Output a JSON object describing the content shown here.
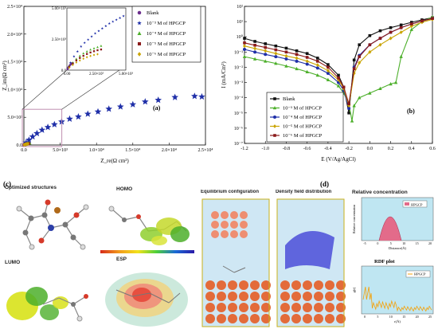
{
  "panel_labels": {
    "a": "(a)",
    "b": "(b)",
    "c": "(c)",
    "d": "(d)"
  },
  "chart_data": [
    {
      "type": "scatter",
      "xlabel": "Z_re(Ω cm²)",
      "ylabel": "Z_im(Ω cm²)",
      "xlim": [
        0,
        25000
      ],
      "ylim": [
        0,
        25000
      ],
      "x_ticks": [
        "0.0",
        "5.0×10³",
        "1.0×10⁴",
        "1.5×10⁴",
        "2.0×10⁴",
        "2.5×10⁴"
      ],
      "y_ticks": [
        "0.0",
        "5.0×10³",
        "1.0×10⁴",
        "1.5×10⁴",
        "2.0×10⁴",
        "2.5×10⁴"
      ],
      "legend_position": "top-right",
      "series": [
        {
          "name": "Blank",
          "color": "#6b2d8c",
          "marker": "circle",
          "x": [
            60,
            120,
            200,
            280,
            350,
            420,
            480
          ],
          "y": [
            30,
            60,
            90,
            120,
            140,
            155,
            165
          ]
        },
        {
          "name": "10⁻³ M of HPGCP",
          "color": "#1f2fa8",
          "marker": "star",
          "x": [
            300,
            700,
            1200,
            1800,
            2500,
            3300,
            4200,
            5200,
            6300,
            7500,
            8800,
            10200,
            11700,
            13300,
            15000,
            16700,
            18500,
            20800,
            23500,
            24500
          ],
          "y": [
            400,
            900,
            1500,
            2100,
            2700,
            3200,
            3700,
            4200,
            4700,
            5100,
            5600,
            6000,
            6500,
            6900,
            7300,
            7800,
            8100,
            8600,
            8800,
            8700
          ]
        },
        {
          "name": "10⁻⁴ M of HPGCP",
          "color": "#4caf2a",
          "marker": "triangle",
          "x": [
            60,
            150,
            250,
            350,
            450,
            560,
            680,
            800
          ],
          "y": [
            40,
            100,
            160,
            210,
            250,
            290,
            320,
            340
          ]
        },
        {
          "name": "10⁻⁵ M of HPGCP",
          "color": "#8a1a1a",
          "marker": "square",
          "x": [
            60,
            150,
            250,
            350,
            450,
            560,
            680
          ],
          "y": [
            35,
            90,
            140,
            180,
            215,
            245,
            265
          ]
        },
        {
          "name": "10⁻⁶ M of HPGCP",
          "color": "#c9a400",
          "marker": "diamond",
          "x": [
            60,
            150,
            250,
            350,
            450,
            560
          ],
          "y": [
            30,
            80,
            125,
            160,
            190,
            210
          ]
        }
      ],
      "inset": {
        "xlim": [
          0,
          5000
        ],
        "ylim": [
          0,
          5000
        ],
        "x_ticks": [
          "0.00",
          "2.50×10³",
          "5.00×10³"
        ],
        "y_ticks": [
          "0.0",
          "5.00×10³"
        ],
        "y_mid_label": "2.50×10³",
        "series": [
          {
            "name": "Blank",
            "x": [
              50,
              100,
              160,
              230,
              300,
              370,
              440,
              500
            ],
            "y": [
              80,
              180,
              280,
              370,
              440,
              500,
              540,
              570
            ]
          },
          {
            "name": "10⁻³ M of HPGCP",
            "x": [
              300,
              600,
              900,
              1200,
              1500,
              1800,
              2100,
              2400,
              2700,
              3000,
              3300,
              3600,
              3900,
              4200,
              4500,
              4800
            ],
            "y": [
              600,
              1100,
              1500,
              1900,
              2200,
              2450,
              2700,
              2950,
              3150,
              3350,
              3550,
              3750,
              3900,
              4050,
              4200,
              4350
            ]
          },
          {
            "name": "10⁻⁴ M of HPGCP",
            "x": [
              200,
              500,
              800,
              1100,
              1400,
              1700,
              2000,
              2300,
              2600,
              2900
            ],
            "y": [
              300,
              600,
              900,
              1150,
              1350,
              1500,
              1650,
              1750,
              1850,
              1950
            ]
          },
          {
            "name": "10⁻⁵ M of HPGCP",
            "x": [
              200,
              500,
              800,
              1100,
              1400,
              1700,
              2000,
              2300,
              2600,
              2900
            ],
            "y": [
              250,
              520,
              780,
              980,
              1150,
              1300,
              1420,
              1520,
              1600,
              1660
            ]
          },
          {
            "name": "10⁻⁶ M of HPGCP",
            "x": [
              200,
              500,
              800,
              1100,
              1400,
              1700,
              2000,
              2300,
              2600
            ],
            "y": [
              200,
              420,
              620,
              780,
              920,
              1040,
              1140,
              1220,
              1280
            ]
          }
        ]
      }
    },
    {
      "type": "line",
      "xlabel": "E (V/Ag/AgCl)",
      "ylabel": "I (mA/Cm²)",
      "y_scale": "log",
      "xlim": [
        -1.2,
        0.6
      ],
      "ylim": [
        1e-07,
        100
      ],
      "x_ticks": [
        "-1.2",
        "-1.0",
        "-0.8",
        "-0.6",
        "-0.4",
        "-0.2",
        "0.0",
        "0.2",
        "0.4",
        "0.6"
      ],
      "y_ticks": [
        "10⁻⁷",
        "10⁻⁶",
        "10⁻⁵",
        "10⁻⁴",
        "10⁻³",
        "10⁻²",
        "10⁻¹",
        "10⁰",
        "10¹",
        "10²"
      ],
      "legend_position": "bottom-left",
      "series": [
        {
          "name": "Blank",
          "color": "#111111",
          "marker": "square",
          "x": [
            -1.2,
            -1.1,
            -1.0,
            -0.9,
            -0.8,
            -0.7,
            -0.6,
            -0.5,
            -0.4,
            -0.3,
            -0.25,
            -0.2,
            -0.15,
            -0.1,
            0.0,
            0.1,
            0.2,
            0.3,
            0.4,
            0.5,
            0.6
          ],
          "y": [
            0.8,
            0.5,
            0.35,
            0.25,
            0.18,
            0.12,
            0.08,
            0.04,
            0.015,
            0.003,
            0.0005,
            1e-05,
            0.03,
            0.3,
            1.2,
            2.5,
            4,
            6,
            9,
            13,
            18
          ]
        },
        {
          "name": "10⁻³ M of HPGCP",
          "color": "#4caf2a",
          "marker": "triangle",
          "x": [
            -1.2,
            -1.1,
            -1.0,
            -0.9,
            -0.8,
            -0.7,
            -0.6,
            -0.5,
            -0.4,
            -0.3,
            -0.25,
            -0.2,
            -0.17,
            -0.15,
            -0.1,
            0.0,
            0.1,
            0.2,
            0.25,
            0.3,
            0.4,
            0.5,
            0.6
          ],
          "y": [
            0.05,
            0.035,
            0.025,
            0.018,
            0.012,
            0.008,
            0.005,
            0.003,
            0.0015,
            0.0006,
            0.0002,
            4e-05,
            3e-06,
            3e-05,
            0.0001,
            0.0002,
            0.0004,
            0.0008,
            0.001,
            0.05,
            3,
            10,
            20
          ]
        },
        {
          "name": "10⁻⁴ M of HPGCP",
          "color": "#1f2fa8",
          "marker": "circle",
          "x": [
            -1.2,
            -1.1,
            -1.0,
            -0.9,
            -0.8,
            -0.7,
            -0.6,
            -0.5,
            -0.4,
            -0.3,
            -0.25,
            -0.2,
            -0.15,
            -0.1,
            0.0,
            0.1,
            0.2,
            0.3,
            0.4,
            0.5,
            0.6
          ],
          "y": [
            0.15,
            0.1,
            0.07,
            0.05,
            0.035,
            0.025,
            0.016,
            0.009,
            0.004,
            0.001,
            0.0003,
            2e-05,
            0.01,
            0.06,
            0.3,
            0.8,
            2,
            4,
            7,
            11,
            16
          ]
        },
        {
          "name": "10⁻⁵ M of HPGCP",
          "color": "#c9a400",
          "marker": "diamond",
          "x": [
            -1.2,
            -1.1,
            -1.0,
            -0.9,
            -0.8,
            -0.7,
            -0.6,
            -0.5,
            -0.4,
            -0.3,
            -0.25,
            -0.2,
            -0.15,
            -0.1,
            0.0,
            0.1,
            0.2,
            0.3,
            0.4,
            0.5,
            0.6
          ],
          "y": [
            0.25,
            0.17,
            0.12,
            0.08,
            0.055,
            0.04,
            0.025,
            0.014,
            0.006,
            0.0015,
            0.0004,
            3e-05,
            0.004,
            0.02,
            0.1,
            0.3,
            0.8,
            2,
            5,
            9,
            14
          ]
        },
        {
          "name": "10⁻⁶ M of HPGCP",
          "color": "#8a1a1a",
          "marker": "square",
          "x": [
            -1.2,
            -1.1,
            -1.0,
            -0.9,
            -0.8,
            -0.7,
            -0.6,
            -0.5,
            -0.4,
            -0.3,
            -0.25,
            -0.2,
            -0.15,
            -0.1,
            0.0,
            0.1,
            0.2,
            0.3,
            0.4,
            0.5,
            0.6
          ],
          "y": [
            0.4,
            0.28,
            0.2,
            0.14,
            0.1,
            0.07,
            0.045,
            0.025,
            0.01,
            0.002,
            0.0005,
            4e-05,
            0.008,
            0.05,
            0.3,
            0.8,
            2,
            4,
            7,
            11,
            16
          ]
        }
      ]
    }
  ],
  "panel_c": {
    "titles": {
      "optimized": "Optimized structures",
      "homo": "HOMO",
      "lumo": "LUMO",
      "esp": "ESP"
    }
  },
  "panel_d": {
    "titles": {
      "equilibrium": "Equilibrium configuration",
      "density": "Density field distribution",
      "relative": "Relative concentration",
      "rdf": "RDF plot"
    },
    "relative_concentration": {
      "xlabel": "Distance(Å)",
      "ylabel": "Relative concentration",
      "legend": "HPGCP",
      "x_ticks": [
        "-5",
        "0",
        "5",
        "10",
        "15",
        "20"
      ],
      "series_color": "#e36b8a"
    },
    "rdf": {
      "xlabel": "r(Å)",
      "ylabel": "g(r)",
      "legend": "HPGCP",
      "x_ticks": [
        "0",
        "5",
        "10",
        "15",
        "20",
        "25"
      ],
      "series_color": "#f4a10a"
    }
  }
}
